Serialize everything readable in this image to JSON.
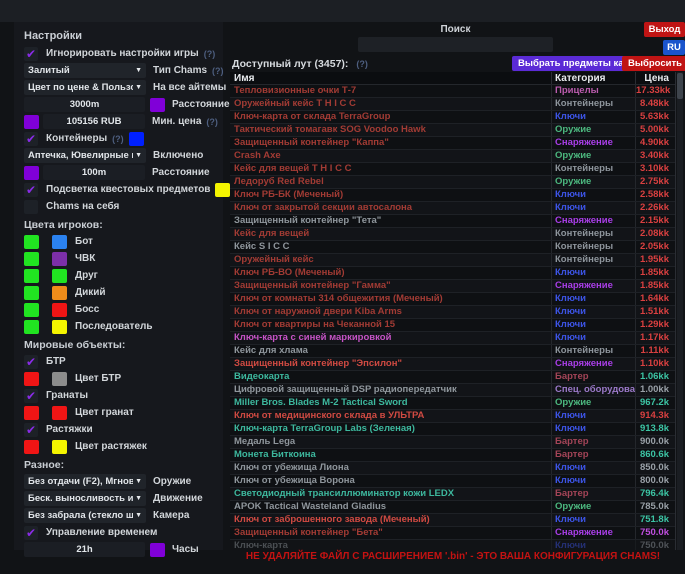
{
  "window": {
    "exit_button": "Выход",
    "lang_button": "RU",
    "footer_warning": "НЕ УДАЛЯЙТЕ ФАЙЛ С РАСШИРЕНИЕМ '.bin' - ЭТО ВАША КОНФИГУРАЦИЯ CHAMS!"
  },
  "settings": {
    "title": "Настройки",
    "rows": [
      {
        "type": "checkbox",
        "label": "Игнорировать настройки игры",
        "checked": true,
        "hint": "(?)"
      },
      {
        "type": "dropdown",
        "value": "Залитый",
        "right": "Тип Chams",
        "hint": "(?)"
      },
      {
        "type": "dropdown",
        "value": "Цвет по цене & Пользователь",
        "right": "На все айтемы"
      },
      {
        "type": "input",
        "value": "3000m",
        "swatch_after": "#8000d8",
        "right": "Расстояние"
      },
      {
        "type": "input",
        "swatch_before": "#8000d8",
        "value": "105156 RUB",
        "right": "Мин. цена",
        "hint": "(?)"
      },
      {
        "type": "checkbox",
        "label": "Контейнеры",
        "checked": true,
        "hint": "(?)",
        "swatch_after": "#0020ff"
      },
      {
        "type": "dropdown",
        "value": "Аптечка, Ювелирные и...",
        "right": "Включено"
      },
      {
        "type": "input",
        "swatch_before": "#8000d8",
        "value": "100m",
        "right": "Расстояние"
      },
      {
        "type": "checkbox",
        "label": "Подсветка квестовых предметов",
        "checked": true,
        "swatch_after": "#f4f400"
      },
      {
        "type": "checkbox",
        "label": "Chams на себя",
        "checked": false
      },
      {
        "type": "section",
        "label": "Цвета игроков:"
      },
      {
        "type": "pair",
        "swatches": [
          "#21e421",
          "#2b82f0"
        ],
        "label": "Бот"
      },
      {
        "type": "pair",
        "swatches": [
          "#21e421",
          "#7c2fa8"
        ],
        "label": "ЧВК"
      },
      {
        "type": "pair",
        "swatches": [
          "#21e421",
          "#21e421"
        ],
        "label": "Друг"
      },
      {
        "type": "pair",
        "swatches": [
          "#21e421",
          "#ef8c1a"
        ],
        "label": "Дикий"
      },
      {
        "type": "pair",
        "swatches": [
          "#21e421",
          "#f01515"
        ],
        "label": "Босс"
      },
      {
        "type": "pair",
        "swatches": [
          "#21e421",
          "#f4f400"
        ],
        "label": "Последователь"
      },
      {
        "type": "section",
        "label": "Мировые объекты:"
      },
      {
        "type": "checkbox",
        "label": "БТР",
        "checked": true
      },
      {
        "type": "pair",
        "swatches": [
          "#f01515",
          "#8c8c8c"
        ],
        "label": "Цвет БТР"
      },
      {
        "type": "checkbox",
        "label": "Гранаты",
        "checked": true
      },
      {
        "type": "pair",
        "swatches": [
          "#f01515",
          "#f01515"
        ],
        "label": "Цвет гранат"
      },
      {
        "type": "checkbox",
        "label": "Растяжки",
        "checked": true
      },
      {
        "type": "pair",
        "swatches": [
          "#f01515",
          "#f4f400"
        ],
        "label": "Цвет растяжек"
      },
      {
        "type": "section",
        "label": "Разное:"
      },
      {
        "type": "dropdown",
        "value": "Без отдачи (F2), Мгновенное п",
        "right": "Оружие"
      },
      {
        "type": "dropdown",
        "value": "Беск. выносливость и нет уста",
        "right": "Движение"
      },
      {
        "type": "dropdown",
        "value": "Без забрала (стекло шлема)",
        "right": "Камера"
      },
      {
        "type": "checkbox",
        "label": "Управление временем",
        "checked": true
      },
      {
        "type": "input",
        "value": "21h",
        "swatch_after": "#8000d8",
        "right": "Часы"
      }
    ]
  },
  "loot": {
    "search_label": "Поиск",
    "search_value": "",
    "available_label": "Доступный лут (3457):",
    "hint": "(?)",
    "select_kappa_button": "Выбрать предметы каппа",
    "drop_all_button": "Выбросить все",
    "columns": [
      "Имя",
      "Категория",
      "Цена"
    ],
    "palette": {
      "name_red": "#a23b34",
      "name_bright_red": "#d04a42",
      "name_pink": "#c653c6",
      "name_gray": "#8f969c",
      "name_teal": "#3db89e",
      "cat_scopes": "#bb5cae",
      "cat_containers": "#8e959c",
      "cat_keys": "#3d55e8",
      "cat_weapons": "#4cb87f",
      "cat_gear": "#a93ee8",
      "cat_barter": "#a34457",
      "cat_special": "#9b79c9",
      "price_red": "#d94040",
      "price_teal": "#3cc4a4",
      "price_gray": "#99a0a7",
      "price_magenta": "#c04fe0"
    },
    "rows": [
      {
        "name": "Тепловизионные очки Т-7",
        "nc": "name_red",
        "category": "Прицелы",
        "cc": "cat_scopes",
        "price": "17.33kk",
        "pc": "price_red"
      },
      {
        "name": "Оружейный кейс T H I C C",
        "nc": "name_red",
        "category": "Контейнеры",
        "cc": "cat_containers",
        "price": "8.48kk",
        "pc": "price_red"
      },
      {
        "name": "Ключ-карта от склада TerraGroup",
        "nc": "name_red",
        "category": "Ключи",
        "cc": "cat_keys",
        "price": "5.63kk",
        "pc": "price_red"
      },
      {
        "name": "Тактический томагавк SOG Voodoo Hawk",
        "nc": "name_red",
        "category": "Оружие",
        "cc": "cat_weapons",
        "price": "5.00kk",
        "pc": "price_red"
      },
      {
        "name": "Защищенный контейнер \"Каппа\"",
        "nc": "name_red",
        "category": "Снаряжение",
        "cc": "cat_gear",
        "price": "4.90kk",
        "pc": "price_red"
      },
      {
        "name": "Crash Axe",
        "nc": "name_red",
        "category": "Оружие",
        "cc": "cat_weapons",
        "price": "3.40kk",
        "pc": "price_red"
      },
      {
        "name": "Кейс для вещей T H I C C",
        "nc": "name_red",
        "category": "Контейнеры",
        "cc": "cat_containers",
        "price": "3.10kk",
        "pc": "price_red"
      },
      {
        "name": "Ледоруб Red Rebel",
        "nc": "name_red",
        "category": "Оружие",
        "cc": "cat_weapons",
        "price": "2.75kk",
        "pc": "price_red"
      },
      {
        "name": "Ключ РБ-БК (Меченый)",
        "nc": "name_red",
        "category": "Ключи",
        "cc": "cat_keys",
        "price": "2.58kk",
        "pc": "price_red"
      },
      {
        "name": "Ключ от закрытой секции автосалона",
        "nc": "name_red",
        "category": "Ключи",
        "cc": "cat_keys",
        "price": "2.26kk",
        "pc": "price_red"
      },
      {
        "name": "Защищенный контейнер \"Тета\"",
        "nc": "name_gray",
        "category": "Снаряжение",
        "cc": "cat_gear",
        "price": "2.15kk",
        "pc": "price_red"
      },
      {
        "name": "Кейс для вещей",
        "nc": "name_red",
        "category": "Контейнеры",
        "cc": "cat_containers",
        "price": "2.08kk",
        "pc": "price_red"
      },
      {
        "name": "Кейс S I C C",
        "nc": "name_gray",
        "category": "Контейнеры",
        "cc": "cat_containers",
        "price": "2.05kk",
        "pc": "price_red"
      },
      {
        "name": "Оружейный кейс",
        "nc": "name_red",
        "category": "Контейнеры",
        "cc": "cat_containers",
        "price": "1.95kk",
        "pc": "price_red"
      },
      {
        "name": "Ключ РБ-ВО (Меченый)",
        "nc": "name_red",
        "category": "Ключи",
        "cc": "cat_keys",
        "price": "1.85kk",
        "pc": "price_red"
      },
      {
        "name": "Защищенный контейнер \"Гамма\"",
        "nc": "name_red",
        "category": "Снаряжение",
        "cc": "cat_gear",
        "price": "1.85kk",
        "pc": "price_red"
      },
      {
        "name": "Ключ от комнаты 314 общежития (Меченый)",
        "nc": "name_red",
        "category": "Ключи",
        "cc": "cat_keys",
        "price": "1.64kk",
        "pc": "price_red"
      },
      {
        "name": "Ключ от наружной двери Kiba Arms",
        "nc": "name_red",
        "category": "Ключи",
        "cc": "cat_keys",
        "price": "1.51kk",
        "pc": "price_red"
      },
      {
        "name": "Ключ от квартиры на Чеканной 15",
        "nc": "name_red",
        "category": "Ключи",
        "cc": "cat_keys",
        "price": "1.29kk",
        "pc": "price_red"
      },
      {
        "name": "Ключ-карта с синей маркировкой",
        "nc": "name_pink",
        "category": "Ключи",
        "cc": "cat_keys",
        "price": "1.17kk",
        "pc": "price_red"
      },
      {
        "name": "Кейс для хлама",
        "nc": "name_gray",
        "category": "Контейнеры",
        "cc": "cat_containers",
        "price": "1.11kk",
        "pc": "price_red"
      },
      {
        "name": "Защищенный контейнер \"Эпсилон\"",
        "nc": "name_bright_red",
        "category": "Снаряжение",
        "cc": "cat_gear",
        "price": "1.10kk",
        "pc": "price_red"
      },
      {
        "name": "Видеокарта",
        "nc": "name_teal",
        "category": "Бартер",
        "cc": "cat_barter",
        "price": "1.06kk",
        "pc": "price_teal"
      },
      {
        "name": "Цифровой защищенный DSP радиопередатчик",
        "nc": "name_gray",
        "category": "Спец. оборудование",
        "cc": "cat_special",
        "price": "1.00kk",
        "pc": "price_gray"
      },
      {
        "name": "Miller Bros. Blades M-2 Tactical Sword",
        "nc": "name_teal",
        "category": "Оружие",
        "cc": "cat_weapons",
        "price": "967.2k",
        "pc": "price_teal"
      },
      {
        "name": "Ключ от медицинского склада в УЛЬТРА",
        "nc": "name_bright_red",
        "category": "Ключи",
        "cc": "cat_keys",
        "price": "914.3k",
        "pc": "price_red"
      },
      {
        "name": "Ключ-карта TerraGroup Labs (Зеленая)",
        "nc": "name_teal",
        "category": "Ключи",
        "cc": "cat_keys",
        "price": "913.8k",
        "pc": "price_teal"
      },
      {
        "name": "Медаль Lega",
        "nc": "name_gray",
        "category": "Бартер",
        "cc": "cat_barter",
        "price": "900.0k",
        "pc": "price_gray"
      },
      {
        "name": "Монета Биткоина",
        "nc": "name_teal",
        "category": "Бартер",
        "cc": "cat_barter",
        "price": "860.6k",
        "pc": "price_teal"
      },
      {
        "name": "Ключ от убежища Лиона",
        "nc": "name_gray",
        "category": "Ключи",
        "cc": "cat_keys",
        "price": "850.0k",
        "pc": "price_gray"
      },
      {
        "name": "Ключ от убежища Ворона",
        "nc": "name_gray",
        "category": "Ключи",
        "cc": "cat_keys",
        "price": "800.0k",
        "pc": "price_gray"
      },
      {
        "name": "Светодиодный трансиллюминатор кожи LEDX",
        "nc": "name_teal",
        "category": "Бартер",
        "cc": "cat_barter",
        "price": "796.4k",
        "pc": "price_teal"
      },
      {
        "name": "APOK Tactical Wasteland Gladius",
        "nc": "name_gray",
        "category": "Оружие",
        "cc": "cat_weapons",
        "price": "785.0k",
        "pc": "price_gray"
      },
      {
        "name": "Ключ от заброшенного завода (Меченый)",
        "nc": "name_bright_red",
        "category": "Ключи",
        "cc": "cat_keys",
        "price": "751.8k",
        "pc": "price_teal"
      },
      {
        "name": "Защищенный контейнер \"Бета\"",
        "nc": "name_red",
        "category": "Снаряжение",
        "cc": "cat_gear",
        "price": "750.0k",
        "pc": "price_magenta"
      }
    ],
    "partial_row": {
      "name": "Ключ-карта",
      "nc": "name_gray",
      "category": "Ключи",
      "cc": "cat_keys",
      "price": "750.0k",
      "pc": "price_gray"
    }
  }
}
